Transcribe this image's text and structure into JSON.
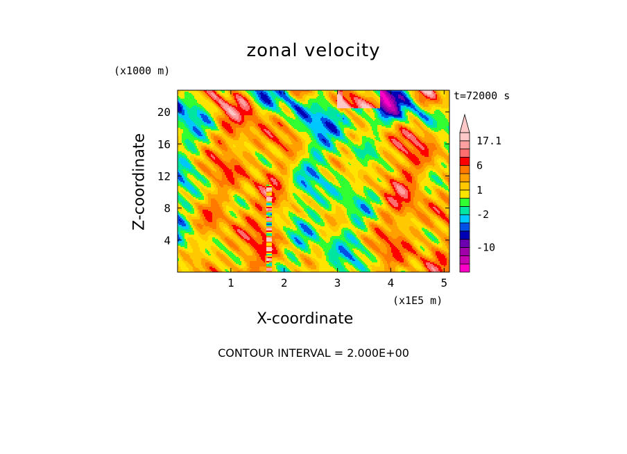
{
  "chart_data": {
    "type": "heatmap",
    "title": "zonal velocity",
    "xlabel": "X-coordinate",
    "ylabel": "Z-coordinate",
    "x_unit": "(x1E5 m)",
    "y_unit": "(x1000 m)",
    "time_label": "t=72000 s",
    "contour_interval_label": "CONTOUR INTERVAL = 2.000E+00",
    "xlim": [
      0,
      5.1
    ],
    "ylim": [
      0,
      22.7
    ],
    "x_ticks": [
      1,
      2,
      3,
      4,
      5
    ],
    "y_ticks": [
      4,
      8,
      12,
      16,
      20
    ],
    "x_tick_labels": [
      "1",
      "2",
      "3",
      "4",
      "5"
    ],
    "y_tick_labels": [
      "4",
      "8",
      "12",
      "16",
      "20"
    ],
    "grid": false,
    "colorbar": {
      "levels_low_to_high": [
        {
          "color": "#ff00c8"
        },
        {
          "color": "#c800b4"
        },
        {
          "color": "#a000aa"
        },
        {
          "color": "#6a00b0"
        },
        {
          "color": "#0000b4"
        },
        {
          "color": "#0050e6"
        },
        {
          "color": "#00c8ff"
        },
        {
          "color": "#00e6a0"
        },
        {
          "color": "#32ff32"
        },
        {
          "color": "#ffe400"
        },
        {
          "color": "#ffc800"
        },
        {
          "color": "#ffa000"
        },
        {
          "color": "#ff7800"
        },
        {
          "color": "#ff0000"
        },
        {
          "color": "#ff6e6e"
        },
        {
          "color": "#ffa0a0"
        },
        {
          "color": "#ffc8c8"
        }
      ],
      "labels": [
        {
          "text": "17.1",
          "at_level_boundary": 16
        },
        {
          "text": "6",
          "at_level_boundary": 13
        },
        {
          "text": "1",
          "at_level_boundary": 10
        },
        {
          "text": "-2",
          "at_level_boundary": 7
        },
        {
          "text": "-10",
          "at_level_boundary": 3
        }
      ]
    }
  }
}
